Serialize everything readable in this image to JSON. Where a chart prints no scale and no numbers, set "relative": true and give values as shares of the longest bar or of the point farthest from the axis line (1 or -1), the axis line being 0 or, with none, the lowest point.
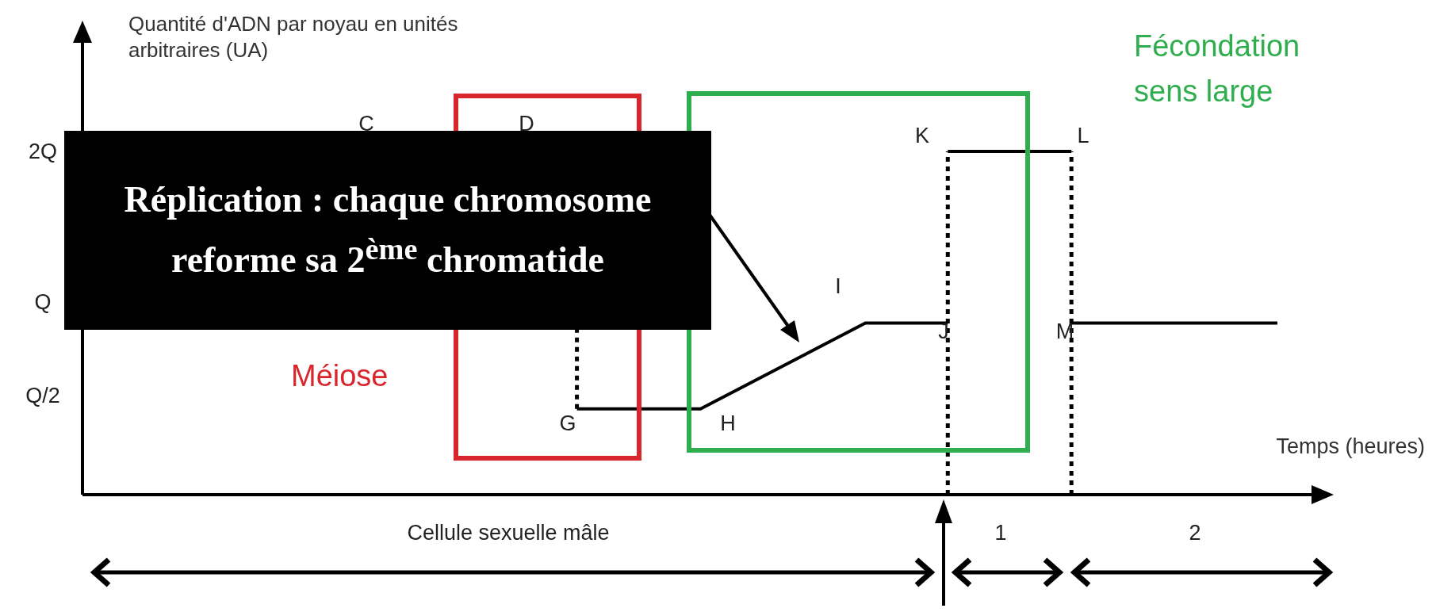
{
  "chart_data": {
    "type": "line",
    "ylabel": "Quantité d'ADN par noyau en unités arbitraires (UA)",
    "xlabel": "Temps (heures)",
    "categories": [
      null,
      null,
      null,
      null,
      null,
      null,
      null,
      null,
      null,
      null,
      null,
      null,
      null,
      null,
      null,
      null,
      null,
      null,
      null,
      null,
      null,
      null,
      null,
      null,
      null,
      null,
      null,
      null,
      null,
      null,
      null
    ],
    "series": [
      {
        "color": "#000000",
        "values": [
          null,
          null,
          null,
          null,
          null,
          null,
          null,
          null,
          null,
          null,
          null,
          null,
          0.25,
          null,
          null,
          0.25,
          null,
          null,
          null,
          0.5,
          null,
          0.5,
          null,
          null,
          null,
          null,
          null,
          null,
          null,
          null,
          null
        ]
      },
      {
        "color": "#000000",
        "values": [
          null,
          null,
          null,
          null,
          null,
          null,
          null,
          null,
          null,
          null,
          null,
          null,
          null,
          null,
          null,
          null,
          null,
          null,
          null,
          null,
          null,
          1,
          null,
          null,
          1,
          null,
          null,
          null,
          null,
          null,
          null
        ]
      },
      {
        "color": "#000000",
        "values": [
          null,
          null,
          null,
          null,
          null,
          null,
          null,
          null,
          null,
          null,
          null,
          null,
          null,
          null,
          null,
          null,
          null,
          null,
          null,
          null,
          null,
          null,
          null,
          null,
          0.5,
          null,
          null,
          null,
          null,
          0.5,
          null
        ]
      }
    ],
    "relative": true,
    "annotations": [
      "C",
      "D",
      "G",
      "H",
      "I",
      "J",
      "K",
      "L",
      "M",
      "Méiose",
      "Fécondation sens large",
      "Réplication : chaque chromosome reforme sa 2$^{ème}$ chromatide",
      "Cellule sexuelle mâle",
      "1",
      "2",
      "Q/2",
      "Q",
      "2Q"
    ]
  }
}
